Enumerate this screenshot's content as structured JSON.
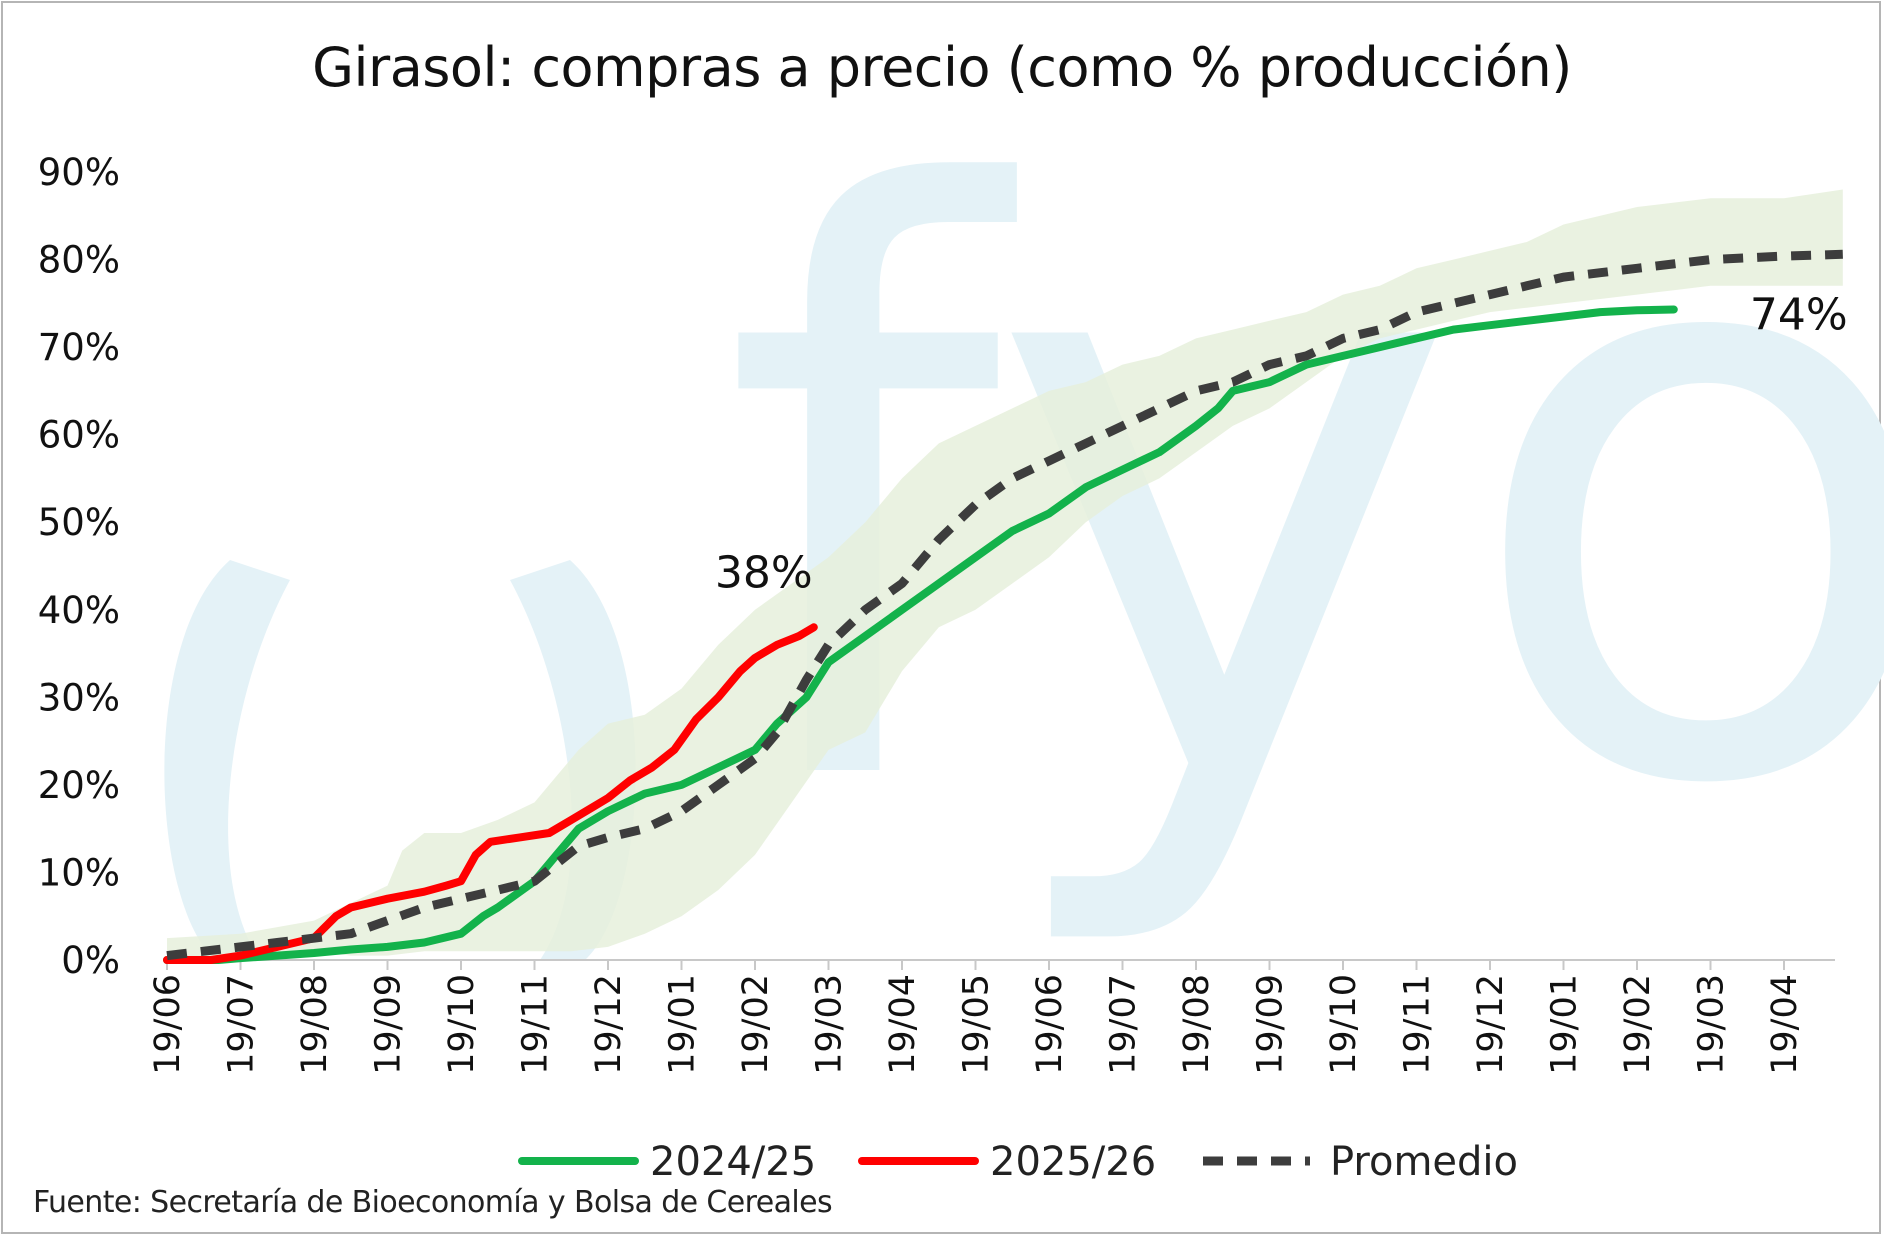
{
  "title": "Girasol: compras a precio (como % producción)",
  "source": "Fuente: Secretaría de Bioeconomía y Bolsa de Cereales",
  "watermark": {
    "text": "fyo",
    "color": "#e4f2f7"
  },
  "chart_data": {
    "type": "line",
    "title": "Girasol: compras a precio (como % producción)",
    "x_tick_labels": [
      "19/06",
      "19/07",
      "19/08",
      "19/09",
      "19/10",
      "19/11",
      "19/12",
      "19/01",
      "19/02",
      "19/03",
      "19/04",
      "19/05",
      "19/06",
      "19/07",
      "19/08",
      "19/09",
      "19/10",
      "19/11",
      "19/12",
      "19/01",
      "19/02",
      "19/03",
      "19/04"
    ],
    "x_unit": "month index (0 = first tick 19/06)",
    "xlim": [
      0,
      22.8
    ],
    "y_tick_labels": [
      "0%",
      "10%",
      "20%",
      "30%",
      "40%",
      "50%",
      "60%",
      "70%",
      "80%",
      "90%"
    ],
    "ylim": [
      0,
      90
    ],
    "grid": false,
    "legend_position": "bottom",
    "band": {
      "color": "#e6f0dc",
      "upper": [
        [
          0,
          2.5
        ],
        [
          1,
          3
        ],
        [
          2,
          4.5
        ],
        [
          3,
          8.5
        ],
        [
          3.2,
          12.5
        ],
        [
          3.5,
          14.5
        ],
        [
          4,
          14.5
        ],
        [
          4.5,
          16
        ],
        [
          5,
          18
        ],
        [
          5.3,
          21
        ],
        [
          5.6,
          24
        ],
        [
          6,
          27
        ],
        [
          6.5,
          28
        ],
        [
          7,
          31
        ],
        [
          7.5,
          36
        ],
        [
          8,
          40
        ],
        [
          8.5,
          43
        ],
        [
          9,
          46
        ],
        [
          9.5,
          50
        ],
        [
          10,
          55
        ],
        [
          10.5,
          59
        ],
        [
          11,
          61
        ],
        [
          11.5,
          63
        ],
        [
          12,
          65
        ],
        [
          12.5,
          66
        ],
        [
          13,
          68
        ],
        [
          13.5,
          69
        ],
        [
          14,
          71
        ],
        [
          14.5,
          72
        ],
        [
          15,
          73
        ],
        [
          15.5,
          74
        ],
        [
          16,
          76
        ],
        [
          16.5,
          77
        ],
        [
          17,
          79
        ],
        [
          17.5,
          80
        ],
        [
          18,
          81
        ],
        [
          18.5,
          82
        ],
        [
          19,
          84
        ],
        [
          19.5,
          85
        ],
        [
          20,
          86
        ],
        [
          20.5,
          86.5
        ],
        [
          21,
          87
        ],
        [
          21.5,
          87
        ],
        [
          22,
          87
        ],
        [
          22.8,
          88
        ]
      ],
      "lower": [
        [
          0,
          0
        ],
        [
          1,
          0
        ],
        [
          1.5,
          0.5
        ],
        [
          2,
          1
        ],
        [
          2.5,
          0.5
        ],
        [
          3,
          0.5
        ],
        [
          3.5,
          1
        ],
        [
          4,
          1
        ],
        [
          5,
          1
        ],
        [
          5.5,
          1
        ],
        [
          6,
          1.5
        ],
        [
          6.5,
          3
        ],
        [
          7,
          5
        ],
        [
          7.5,
          8
        ],
        [
          8,
          12
        ],
        [
          8.5,
          18
        ],
        [
          9,
          24
        ],
        [
          9.5,
          26
        ],
        [
          10,
          33
        ],
        [
          10.5,
          38
        ],
        [
          11,
          40
        ],
        [
          11.5,
          43
        ],
        [
          12,
          46
        ],
        [
          12.5,
          50
        ],
        [
          13,
          53
        ],
        [
          13.5,
          55
        ],
        [
          14,
          58
        ],
        [
          14.5,
          61
        ],
        [
          15,
          63
        ],
        [
          15.5,
          66
        ],
        [
          16,
          69
        ],
        [
          16.5,
          71
        ],
        [
          17,
          72
        ],
        [
          17.5,
          73
        ],
        [
          18,
          74
        ],
        [
          18.5,
          74.5
        ],
        [
          19,
          75
        ],
        [
          19.5,
          75.5
        ],
        [
          20,
          76
        ],
        [
          20.5,
          76.5
        ],
        [
          21,
          77
        ],
        [
          21.5,
          77
        ],
        [
          22.8,
          77
        ]
      ]
    },
    "series": [
      {
        "name": "2024/25",
        "color": "#13b24b",
        "end_label": "74%",
        "points": [
          [
            0,
            0
          ],
          [
            0.7,
            0
          ],
          [
            1,
            0.2
          ],
          [
            1.5,
            0.5
          ],
          [
            2,
            0.8
          ],
          [
            2.5,
            1.2
          ],
          [
            3,
            1.5
          ],
          [
            3.5,
            2
          ],
          [
            4,
            3
          ],
          [
            4.3,
            5
          ],
          [
            4.5,
            6
          ],
          [
            5,
            9
          ],
          [
            5.3,
            12
          ],
          [
            5.6,
            15
          ],
          [
            6,
            17
          ],
          [
            6.5,
            19
          ],
          [
            7,
            20
          ],
          [
            7.5,
            22
          ],
          [
            8,
            24
          ],
          [
            8.3,
            27
          ],
          [
            8.7,
            30
          ],
          [
            9,
            34
          ],
          [
            9.5,
            37
          ],
          [
            10,
            40
          ],
          [
            10.5,
            43
          ],
          [
            11,
            46
          ],
          [
            11.5,
            49
          ],
          [
            12,
            51
          ],
          [
            12.5,
            54
          ],
          [
            13,
            56
          ],
          [
            13.5,
            58
          ],
          [
            14,
            61
          ],
          [
            14.3,
            63
          ],
          [
            14.5,
            65
          ],
          [
            15,
            66
          ],
          [
            15.5,
            68
          ],
          [
            16,
            69
          ],
          [
            16.5,
            70
          ],
          [
            17,
            71
          ],
          [
            17.5,
            72
          ],
          [
            18,
            72.5
          ],
          [
            18.5,
            73
          ],
          [
            19,
            73.5
          ],
          [
            19.5,
            74
          ],
          [
            20,
            74.2
          ],
          [
            20.5,
            74.3
          ]
        ]
      },
      {
        "name": "2025/26",
        "color": "#ff0000",
        "end_label": "38%",
        "points": [
          [
            0,
            0
          ],
          [
            0.6,
            0
          ],
          [
            1,
            0.5
          ],
          [
            1.5,
            1.5
          ],
          [
            2,
            2.5
          ],
          [
            2.3,
            5
          ],
          [
            2.5,
            6
          ],
          [
            3,
            7
          ],
          [
            3.5,
            7.8
          ],
          [
            3.8,
            8.5
          ],
          [
            4,
            9
          ],
          [
            4.2,
            12
          ],
          [
            4.4,
            13.5
          ],
          [
            4.8,
            14
          ],
          [
            5.2,
            14.5
          ],
          [
            5.5,
            16
          ],
          [
            5.8,
            17.5
          ],
          [
            6,
            18.5
          ],
          [
            6.3,
            20.5
          ],
          [
            6.6,
            22
          ],
          [
            6.9,
            24
          ],
          [
            7.2,
            27.5
          ],
          [
            7.5,
            30
          ],
          [
            7.8,
            33
          ],
          [
            8,
            34.5
          ],
          [
            8.3,
            36
          ],
          [
            8.6,
            37
          ],
          [
            8.8,
            38
          ]
        ]
      },
      {
        "name": "Promedio",
        "color": "#3d3d3d",
        "dashed": true,
        "points": [
          [
            0,
            0.5
          ],
          [
            0.5,
            1
          ],
          [
            1,
            1.5
          ],
          [
            1.5,
            2
          ],
          [
            2,
            2.5
          ],
          [
            2.5,
            3
          ],
          [
            3,
            4.5
          ],
          [
            3.5,
            6
          ],
          [
            4,
            7
          ],
          [
            4.5,
            8
          ],
          [
            5,
            9
          ],
          [
            5.3,
            11
          ],
          [
            5.6,
            13
          ],
          [
            6,
            14
          ],
          [
            6.5,
            15
          ],
          [
            7,
            17
          ],
          [
            7.5,
            20
          ],
          [
            8,
            23
          ],
          [
            8.3,
            26
          ],
          [
            8.7,
            32
          ],
          [
            9,
            36
          ],
          [
            9.5,
            40
          ],
          [
            10,
            43
          ],
          [
            10.5,
            48
          ],
          [
            11,
            52
          ],
          [
            11.5,
            55
          ],
          [
            12,
            57
          ],
          [
            12.5,
            59
          ],
          [
            13,
            61
          ],
          [
            13.5,
            63
          ],
          [
            14,
            65
          ],
          [
            14.5,
            66
          ],
          [
            15,
            68
          ],
          [
            15.5,
            69
          ],
          [
            16,
            71
          ],
          [
            16.5,
            72
          ],
          [
            17,
            74
          ],
          [
            17.5,
            75
          ],
          [
            18,
            76
          ],
          [
            18.5,
            77
          ],
          [
            19,
            78
          ],
          [
            19.5,
            78.5
          ],
          [
            20,
            79
          ],
          [
            20.5,
            79.5
          ],
          [
            21,
            80
          ],
          [
            21.5,
            80.2
          ],
          [
            22,
            80.4
          ],
          [
            22.8,
            80.6
          ]
        ]
      }
    ]
  }
}
